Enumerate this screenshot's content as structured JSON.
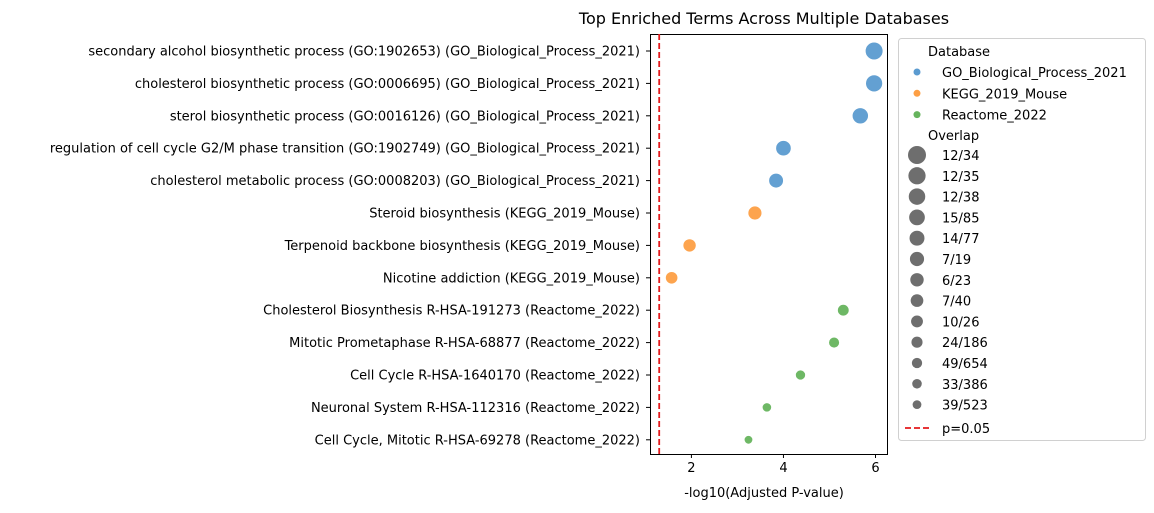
{
  "chart_data": {
    "type": "scatter",
    "title": "Top Enriched Terms Across Multiple Databases",
    "xlabel": "-log10(Adjusted P-value)",
    "ylabel": "",
    "xlim": [
      1.1,
      6.25
    ],
    "xticks": [
      2,
      4,
      6
    ],
    "grid": false,
    "legend_position": "outside-right",
    "threshold": {
      "label": "p=0.05",
      "x": 1.3,
      "color": "#e41a1c"
    },
    "legend": {
      "database_title": "Database",
      "overlap_title": "Overlap",
      "databases": [
        {
          "name": "GO_Biological_Process_2021",
          "color": "#5b9bd0"
        },
        {
          "name": "KEGG_2019_Mouse",
          "color": "#fd9f44"
        },
        {
          "name": "Reactome_2022",
          "color": "#66b45d"
        }
      ],
      "overlaps": [
        "12/34",
        "12/35",
        "12/38",
        "15/85",
        "14/77",
        "7/19",
        "6/23",
        "7/40",
        "10/26",
        "24/186",
        "49/654",
        "33/386",
        "39/523"
      ]
    },
    "points": [
      {
        "term": "secondary alcohol biosynthetic process (GO:1902653) (GO_Biological_Process_2021)",
        "x": 5.97,
        "database": "GO_Biological_Process_2021",
        "overlap": "12/34"
      },
      {
        "term": "cholesterol biosynthetic process (GO:0006695) (GO_Biological_Process_2021)",
        "x": 5.97,
        "database": "GO_Biological_Process_2021",
        "overlap": "12/35"
      },
      {
        "term": "sterol biosynthetic process (GO:0016126) (GO_Biological_Process_2021)",
        "x": 5.67,
        "database": "GO_Biological_Process_2021",
        "overlap": "12/38"
      },
      {
        "term": "regulation of cell cycle G2/M phase transition (GO:1902749) (GO_Biological_Process_2021)",
        "x": 4.0,
        "database": "GO_Biological_Process_2021",
        "overlap": "15/85"
      },
      {
        "term": "cholesterol metabolic process (GO:0008203) (GO_Biological_Process_2021)",
        "x": 3.84,
        "database": "GO_Biological_Process_2021",
        "overlap": "14/77"
      },
      {
        "term": "Steroid biosynthesis (KEGG_2019_Mouse)",
        "x": 3.38,
        "database": "KEGG_2019_Mouse",
        "overlap": "7/19"
      },
      {
        "term": "Terpenoid backbone biosynthesis (KEGG_2019_Mouse)",
        "x": 1.96,
        "database": "KEGG_2019_Mouse",
        "overlap": "6/23"
      },
      {
        "term": "Nicotine addiction (KEGG_2019_Mouse)",
        "x": 1.57,
        "database": "KEGG_2019_Mouse",
        "overlap": "7/40"
      },
      {
        "term": "Cholesterol Biosynthesis R-HSA-191273 (Reactome_2022)",
        "x": 5.3,
        "database": "Reactome_2022",
        "overlap": "10/26"
      },
      {
        "term": "Mitotic Prometaphase R-HSA-68877 (Reactome_2022)",
        "x": 5.1,
        "database": "Reactome_2022",
        "overlap": "24/186"
      },
      {
        "term": "Cell Cycle R-HSA-1640170 (Reactome_2022)",
        "x": 4.37,
        "database": "Reactome_2022",
        "overlap": "49/654"
      },
      {
        "term": "Neuronal System R-HSA-112316 (Reactome_2022)",
        "x": 3.64,
        "database": "Reactome_2022",
        "overlap": "33/386"
      },
      {
        "term": "Cell Cycle, Mitotic R-HSA-69278 (Reactome_2022)",
        "x": 3.24,
        "database": "Reactome_2022",
        "overlap": "39/523"
      }
    ]
  }
}
